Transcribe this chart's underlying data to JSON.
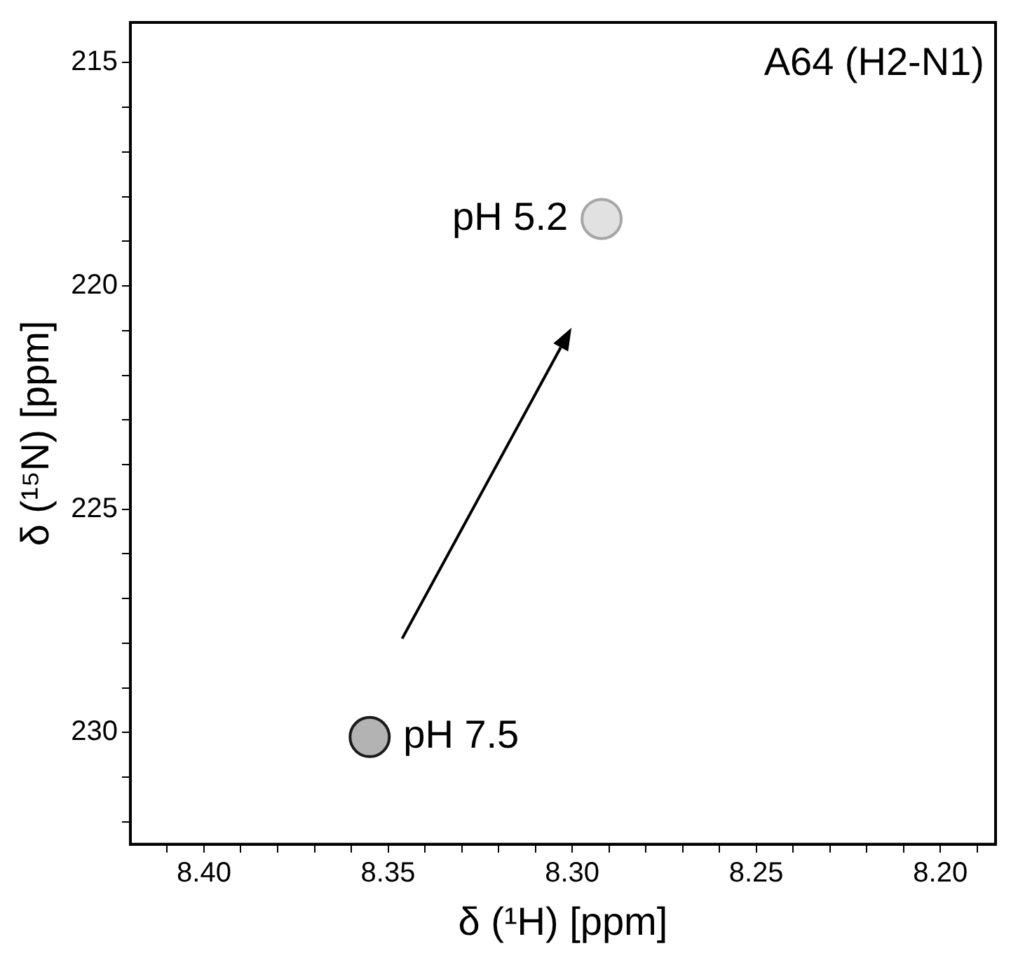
{
  "chart_data": {
    "type": "scatter",
    "xlabel": "δ (¹H) [ppm]",
    "ylabel": "δ (¹⁵N) [ppm]",
    "xlim": [
      8.42,
      8.185
    ],
    "ylim": [
      232.5,
      214.1
    ],
    "xticks": [
      {
        "value": 8.41,
        "label": null
      },
      {
        "value": 8.4,
        "label": "8.40"
      },
      {
        "value": 8.39,
        "label": null
      },
      {
        "value": 8.38,
        "label": null
      },
      {
        "value": 8.37,
        "label": null
      },
      {
        "value": 8.36,
        "label": null
      },
      {
        "value": 8.35,
        "label": "8.35"
      },
      {
        "value": 8.34,
        "label": null
      },
      {
        "value": 8.33,
        "label": null
      },
      {
        "value": 8.32,
        "label": null
      },
      {
        "value": 8.31,
        "label": null
      },
      {
        "value": 8.3,
        "label": "8.30"
      },
      {
        "value": 8.29,
        "label": null
      },
      {
        "value": 8.28,
        "label": null
      },
      {
        "value": 8.27,
        "label": null
      },
      {
        "value": 8.26,
        "label": null
      },
      {
        "value": 8.25,
        "label": "8.25"
      },
      {
        "value": 8.24,
        "label": null
      },
      {
        "value": 8.23,
        "label": null
      },
      {
        "value": 8.22,
        "label": null
      },
      {
        "value": 8.21,
        "label": null
      },
      {
        "value": 8.2,
        "label": "8.20"
      },
      {
        "value": 8.19,
        "label": null
      }
    ],
    "yticks": [
      215,
      {
        "value": 216,
        "label": null
      },
      {
        "value": 217,
        "label": null
      },
      {
        "value": 218,
        "label": null
      },
      {
        "value": 219,
        "label": null
      },
      220,
      {
        "value": 221,
        "label": null
      },
      {
        "value": 222,
        "label": null
      },
      {
        "value": 223,
        "label": null
      },
      {
        "value": 224,
        "label": null
      },
      225,
      {
        "value": 226,
        "label": null
      },
      {
        "value": 227,
        "label": null
      },
      {
        "value": 228,
        "label": null
      },
      {
        "value": 229,
        "label": null
      },
      230,
      {
        "value": 231,
        "label": null
      },
      {
        "value": 232,
        "label": null
      }
    ],
    "series": [
      {
        "name": "pH 5.2",
        "color": "#a6a6a6",
        "x": [
          8.292
        ],
        "values": [
          218.5
        ]
      },
      {
        "name": "pH 7.5",
        "color": "#1a1a1a",
        "x": [
          8.355
        ],
        "values": [
          230.1
        ]
      }
    ],
    "marker": "circle",
    "grid": false,
    "legend": false,
    "annotations": [
      "A64 (H2-N1)"
    ]
  }
}
